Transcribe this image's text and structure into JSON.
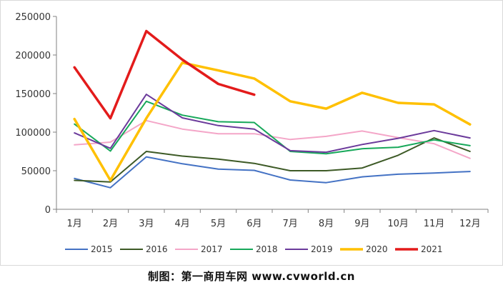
{
  "chart_data": {
    "type": "line",
    "categories": [
      "1月",
      "2月",
      "3月",
      "4月",
      "5月",
      "6月",
      "7月",
      "8月",
      "9月",
      "10月",
      "11月",
      "12月"
    ],
    "ylim": [
      0,
      250000
    ],
    "yticks": [
      0,
      50000,
      100000,
      150000,
      200000,
      250000
    ],
    "ytick_labels": [
      "0",
      "50000",
      "100000",
      "150000",
      "200000",
      "250000"
    ],
    "grid": false,
    "legend_position": "bottom",
    "series": [
      {
        "name": "2015",
        "color": "#4472c4",
        "width": 2,
        "values": [
          40000,
          28000,
          68000,
          59000,
          52000,
          50500,
          38000,
          34500,
          42000,
          45500,
          47000,
          49000
        ]
      },
      {
        "name": "2016",
        "color": "#3d5a26",
        "width": 2,
        "values": [
          37500,
          35500,
          75000,
          69000,
          65000,
          59500,
          50000,
          50000,
          53500,
          70000,
          92500,
          75000
        ]
      },
      {
        "name": "2017",
        "color": "#f4a6c8",
        "width": 2,
        "values": [
          83500,
          87000,
          115000,
          104000,
          98000,
          98000,
          90500,
          94500,
          101500,
          93000,
          85000,
          66000
        ]
      },
      {
        "name": "2018",
        "color": "#17a85a",
        "width": 2,
        "values": [
          110500,
          75500,
          140000,
          122000,
          113500,
          112500,
          75000,
          72000,
          78500,
          80500,
          90000,
          82500
        ]
      },
      {
        "name": "2019",
        "color": "#6b3a9b",
        "width": 2,
        "values": [
          99000,
          79000,
          149000,
          118500,
          108500,
          104000,
          76000,
          74000,
          84000,
          92000,
          102000,
          92500
        ]
      },
      {
        "name": "2020",
        "color": "#ffc000",
        "width": 3.5,
        "values": [
          117000,
          37500,
          118000,
          190000,
          180000,
          169500,
          140000,
          130500,
          151000,
          138000,
          136000,
          110000
        ]
      },
      {
        "name": "2021",
        "color": "#e31b1b",
        "width": 3.5,
        "values": [
          184000,
          118000,
          231000,
          194000,
          162500,
          148500,
          null,
          null,
          null,
          null,
          null,
          null
        ]
      }
    ]
  },
  "footer": {
    "credit": "制图：第一商用车网 www.cvworld.cn"
  }
}
